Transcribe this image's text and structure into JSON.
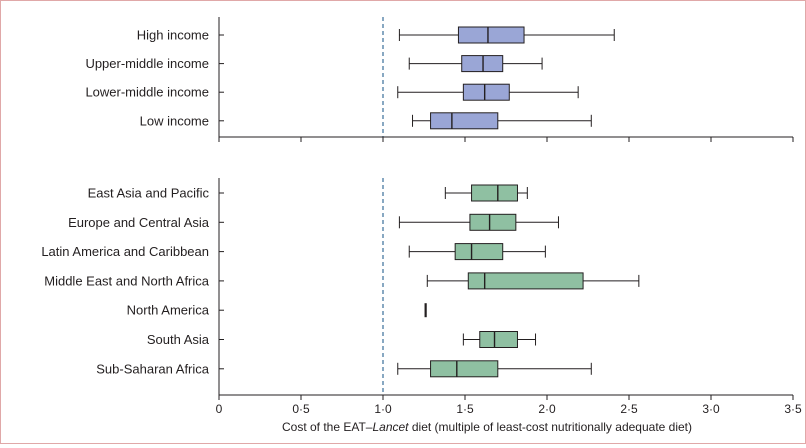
{
  "chart_data": {
    "type": "boxplot",
    "xlabel_parts": [
      "Cost of the EAT–",
      "Lancet",
      " diet (multiple of least-cost nutritionally adequate diet)"
    ],
    "xlim": [
      0,
      3.5
    ],
    "x_ticks": [
      "0",
      "0·5",
      "1·0",
      "1·5",
      "2·0",
      "2·5",
      "3·0",
      "3·5"
    ],
    "x_tick_values": [
      0,
      0.5,
      1.0,
      1.5,
      2.0,
      2.5,
      3.0,
      3.5
    ],
    "reference_line": 1.0,
    "colors": {
      "income": "#9aa6d6",
      "region": "#8fc0a2",
      "stroke": "#231f20",
      "reference": "#3a6f9a"
    },
    "panels": [
      {
        "name": "income",
        "groups": [
          {
            "label": "High income",
            "min": 1.1,
            "q1": 1.46,
            "median": 1.64,
            "q3": 1.86,
            "max": 2.41
          },
          {
            "label": "Upper-middle income",
            "min": 1.16,
            "q1": 1.48,
            "median": 1.61,
            "q3": 1.73,
            "max": 1.97
          },
          {
            "label": "Lower-middle income",
            "min": 1.09,
            "q1": 1.49,
            "median": 1.62,
            "q3": 1.77,
            "max": 2.19
          },
          {
            "label": "Low income",
            "min": 1.18,
            "q1": 1.29,
            "median": 1.42,
            "q3": 1.7,
            "max": 2.27
          }
        ]
      },
      {
        "name": "region",
        "groups": [
          {
            "label": "East Asia and Pacific",
            "min": 1.38,
            "q1": 1.54,
            "median": 1.7,
            "q3": 1.82,
            "max": 1.88
          },
          {
            "label": "Europe and Central Asia",
            "min": 1.1,
            "q1": 1.53,
            "median": 1.65,
            "q3": 1.81,
            "max": 2.07
          },
          {
            "label": "Latin America and Caribbean",
            "min": 1.16,
            "q1": 1.44,
            "median": 1.54,
            "q3": 1.73,
            "max": 1.99
          },
          {
            "label": "Middle East and North Africa",
            "min": 1.27,
            "q1": 1.52,
            "median": 1.62,
            "q3": 2.22,
            "max": 2.56
          },
          {
            "label": "North America",
            "min": 1.26,
            "q1": 1.26,
            "median": 1.26,
            "q3": 1.26,
            "max": 1.26
          },
          {
            "label": "South Asia",
            "min": 1.49,
            "q1": 1.59,
            "median": 1.68,
            "q3": 1.82,
            "max": 1.93
          },
          {
            "label": "Sub-Saharan Africa",
            "min": 1.09,
            "q1": 1.29,
            "median": 1.45,
            "q3": 1.7,
            "max": 2.27
          }
        ]
      }
    ]
  }
}
